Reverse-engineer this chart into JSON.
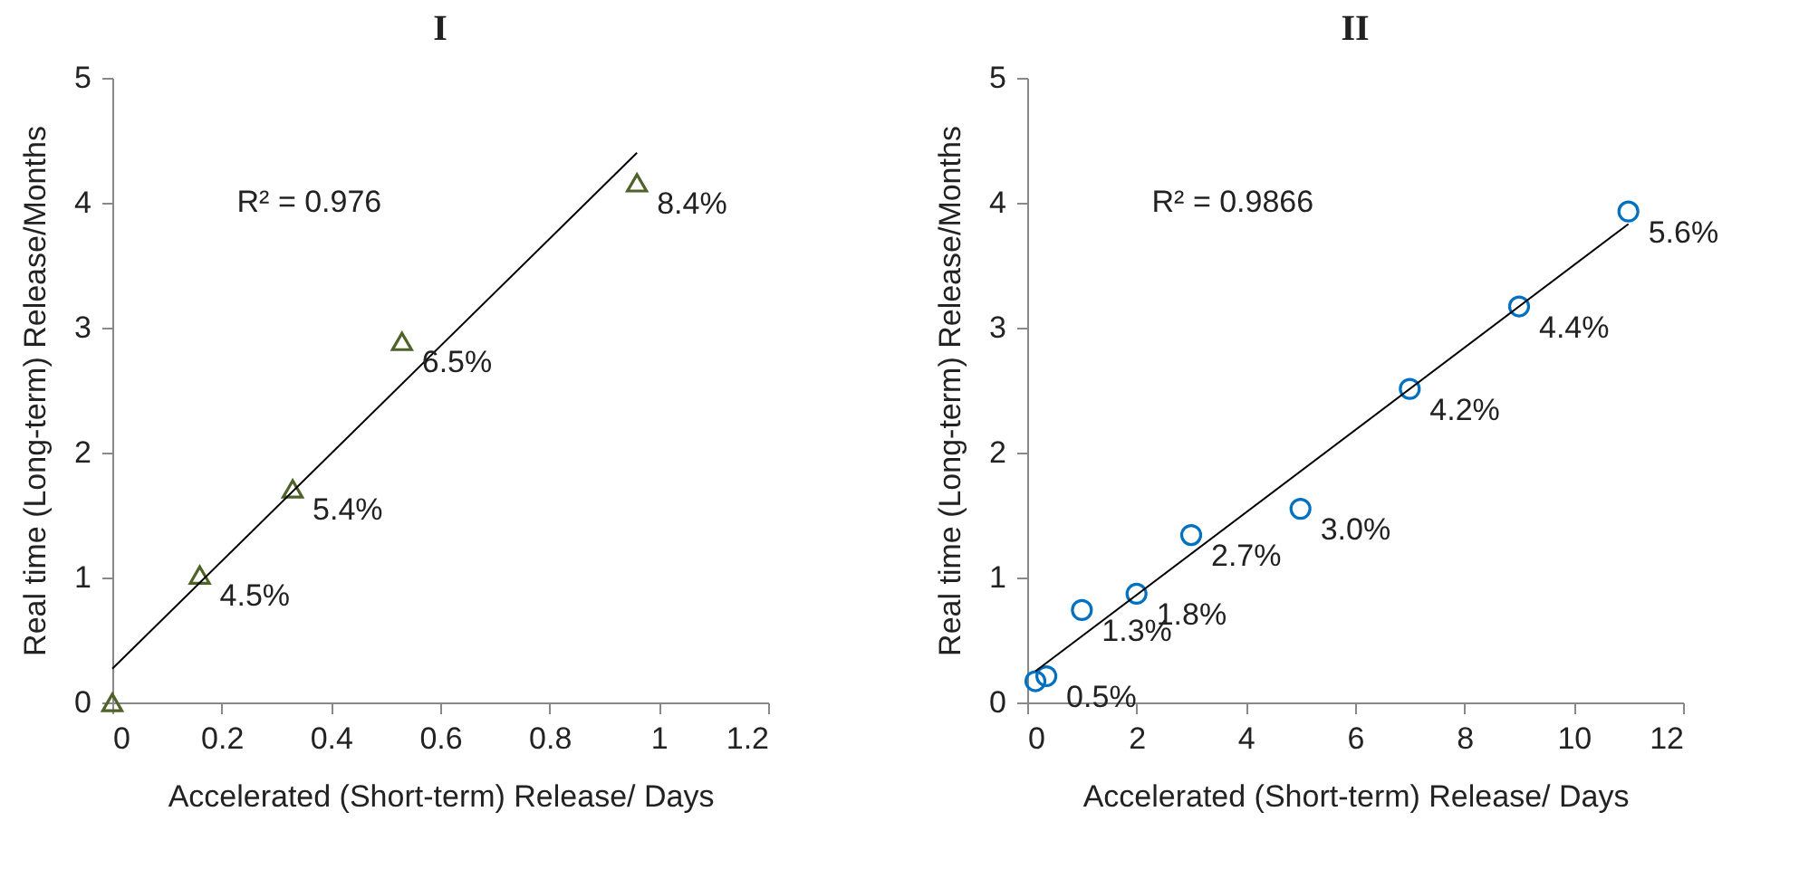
{
  "chart_data": [
    {
      "type": "scatter",
      "title": "I",
      "xlabel": "Accelerated (Short-term) Release/ Days",
      "ylabel": "Real time (Long-term) Release/Months",
      "annotations": [
        "R² = 0.976",
        {
          "text": "4.5%",
          "x": 0.16,
          "y": 1.02
        },
        {
          "text": "5.4%",
          "x": 0.33,
          "y": 1.71
        },
        {
          "text": "6.5%",
          "x": 0.53,
          "y": 2.89
        },
        {
          "text": "8.4%",
          "x": 0.96,
          "y": 4.16
        }
      ],
      "xlim": [
        0,
        1.2
      ],
      "xticks": [
        0,
        0.2,
        0.4,
        0.6,
        0.8,
        1,
        1.2
      ],
      "ylim": [
        0,
        5
      ],
      "yticks": [
        0,
        1,
        2,
        3,
        4,
        5
      ],
      "grid": false,
      "series": [
        {
          "color": "#4f6228",
          "marker": "triangle",
          "x": [
            0,
            0.16,
            0.33,
            0.53,
            0.96
          ],
          "values": [
            0,
            1.02,
            1.71,
            2.89,
            4.16
          ]
        },
        {
          "type": "line",
          "marker": "none",
          "color": "#000000",
          "x": [
            0,
            0.96
          ],
          "values": [
            0.27,
            4.4
          ]
        }
      ]
    },
    {
      "type": "scatter",
      "title": "II",
      "xlabel": "Accelerated (Short-term) Release/ Days",
      "ylabel": "Real time (Long-term) Release/Months",
      "annotations": [
        "R² = 0.9866",
        {
          "text": "0.5%",
          "x": 0.35,
          "y": 0.21
        },
        {
          "text": "1.3%",
          "x": 1,
          "y": 0.74
        },
        {
          "text": "1.8%",
          "x": 2,
          "y": 0.87
        },
        {
          "text": "2.7%",
          "x": 3,
          "y": 1.34
        },
        {
          "text": "3.0%",
          "x": 5,
          "y": 1.55
        },
        {
          "text": "4.2%",
          "x": 7,
          "y": 2.51
        },
        {
          "text": "4.4%",
          "x": 9,
          "y": 3.17
        },
        {
          "text": "5.6%",
          "x": 11,
          "y": 3.93
        }
      ],
      "xlim": [
        0,
        12
      ],
      "xticks": [
        0,
        2,
        4,
        6,
        8,
        10,
        12
      ],
      "ylim": [
        0,
        5
      ],
      "yticks": [
        0,
        1,
        2,
        3,
        4,
        5
      ],
      "grid": false,
      "series": [
        {
          "color": "#0070c0",
          "marker": "circle",
          "x": [
            0.15,
            0.35,
            1,
            2,
            3,
            5,
            7,
            9,
            11
          ],
          "values": [
            0.17,
            0.21,
            0.74,
            0.87,
            1.34,
            1.55,
            2.51,
            3.17,
            3.93
          ]
        },
        {
          "type": "line",
          "marker": "none",
          "color": "#000000",
          "x": [
            0.15,
            11
          ],
          "values": [
            0.25,
            3.83
          ]
        }
      ]
    }
  ]
}
